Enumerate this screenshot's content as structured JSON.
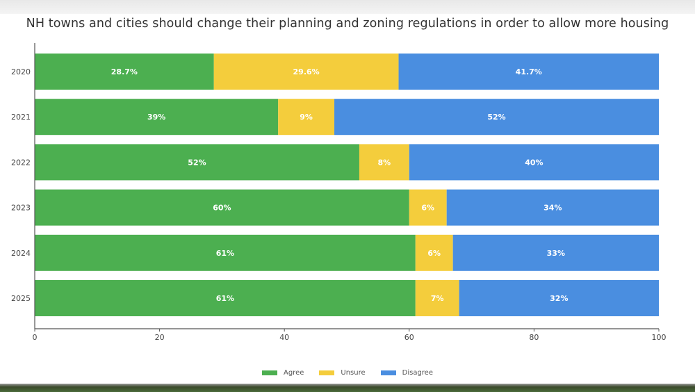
{
  "chart_data": {
    "type": "bar",
    "orientation": "horizontal",
    "stacked": true,
    "title": "NH towns and cities should change their planning and zoning regulations in order to allow more housing",
    "xlabel": "",
    "ylabel": "",
    "xlim": [
      0,
      100
    ],
    "xticks": [
      "0",
      "20",
      "40",
      "60",
      "80",
      "100"
    ],
    "xtick_values": [
      0,
      20,
      40,
      60,
      80,
      100
    ],
    "categories": [
      "2020",
      "2021",
      "2022",
      "2023",
      "2024",
      "2025"
    ],
    "series": [
      {
        "name": "Agree",
        "color": "#4caf50",
        "values": [
          28.7,
          39,
          52,
          60,
          61,
          61
        ],
        "labels": [
          "28.7%",
          "39%",
          "52%",
          "60%",
          "61%",
          "61%"
        ]
      },
      {
        "name": "Unsure",
        "color": "#f4cd3c",
        "values": [
          29.6,
          9,
          8,
          6,
          6,
          7
        ],
        "labels": [
          "29.6%",
          "9%",
          "8%",
          "6%",
          "6%",
          "7%"
        ]
      },
      {
        "name": "Disagree",
        "color": "#4a8ee0",
        "values": [
          41.7,
          52,
          40,
          34,
          33,
          32
        ],
        "labels": [
          "41.7%",
          "52%",
          "40%",
          "34%",
          "33%",
          "32%"
        ]
      }
    ],
    "legend": {
      "position": "bottom-center",
      "entries": [
        "Agree",
        "Unsure",
        "Disagree"
      ]
    },
    "grid": false
  }
}
